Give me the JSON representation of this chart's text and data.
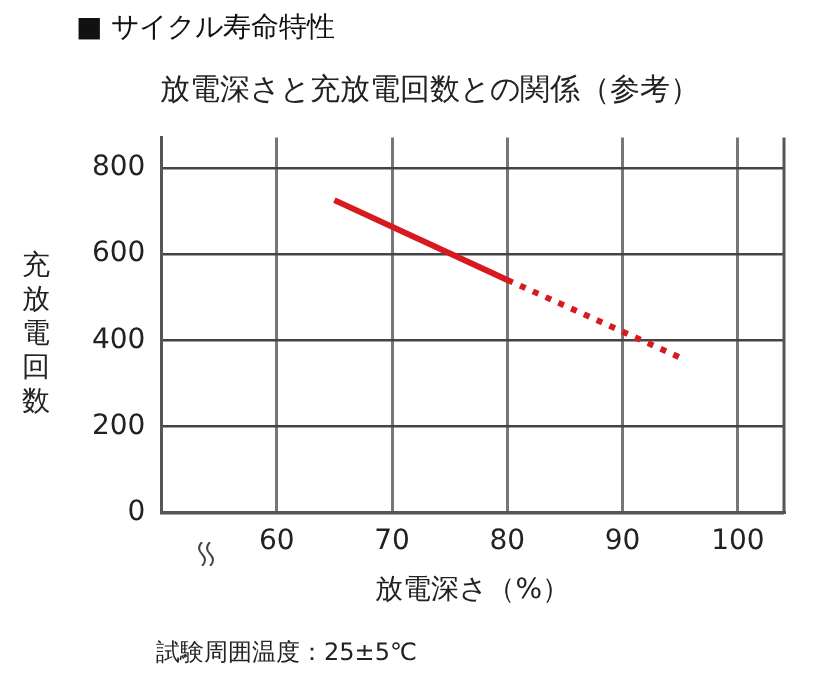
{
  "chart_data": {
    "type": "line",
    "title": "■ サイクル寿命特性",
    "subtitle": "放電深さと充放電回数との関係（参考）",
    "xlabel": "放電深さ（%）",
    "ylabel": "充放電回数",
    "annotations": [
      "試験周囲温度：25±5℃"
    ],
    "series": [
      {
        "color": "#d71920",
        "x": [
          65,
          80
        ],
        "values": [
          725,
          540
        ],
        "line_style": "solid"
      },
      {
        "color": "#d71920",
        "x": [
          80,
          95
        ],
        "values": [
          540,
          360
        ],
        "line_style": "dotted"
      }
    ],
    "xlim": [
      50,
      104
    ],
    "ylim": [
      0,
      870
    ],
    "xticks": [
      60,
      70,
      80,
      90,
      100
    ],
    "yticks": [
      0,
      200,
      400,
      600,
      800
    ],
    "grid": true,
    "legend": false,
    "marker": "none"
  }
}
